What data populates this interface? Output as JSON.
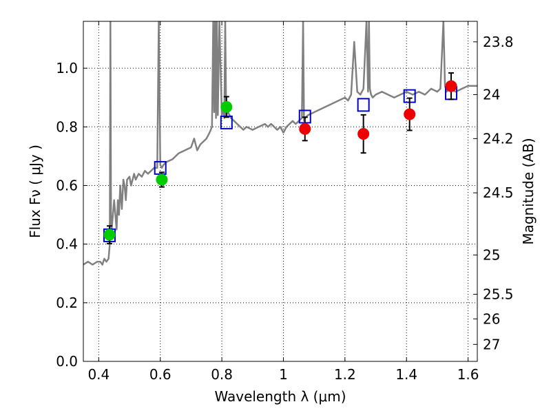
{
  "chart_data": {
    "type": "line",
    "xlabel": "Wavelength  λ (μm)",
    "ylabel": "Flux  Fν  ( μJy )",
    "y2label": "Magnitude (AB)",
    "xlim": [
      0.35,
      1.63
    ],
    "ylim": [
      0.0,
      1.16
    ],
    "grid": true,
    "xticks": [
      0.4,
      0.6,
      0.8,
      1.0,
      1.2,
      1.4,
      1.6
    ],
    "xtick_labels": [
      "0.4",
      "0.6",
      "0.8",
      "1",
      "1.2",
      "1.4",
      "1.6"
    ],
    "yticks": [
      0.0,
      0.2,
      0.4,
      0.6,
      0.8,
      1.0
    ],
    "ytick_labels": [
      "0.0",
      "0.2",
      "0.4",
      "0.6",
      "0.8",
      "1.0"
    ],
    "y2_ticks": [
      {
        "label": "23.8",
        "flux": 1.09
      },
      {
        "label": "24",
        "flux": 0.91
      },
      {
        "label": "24.2",
        "flux": 0.76
      },
      {
        "label": "24.5",
        "flux": 0.575
      },
      {
        "label": "25",
        "flux": 0.363
      },
      {
        "label": "25.5",
        "flux": 0.229
      },
      {
        "label": "26",
        "flux": 0.145
      },
      {
        "label": "27",
        "flux": 0.058
      }
    ],
    "series": [
      {
        "style": "model-spectrum",
        "color": "#808080",
        "x": [
          0.35,
          0.365,
          0.38,
          0.395,
          0.405,
          0.412,
          0.418,
          0.425,
          0.432,
          0.436,
          0.438,
          0.44,
          0.442,
          0.446,
          0.45,
          0.458,
          0.462,
          0.466,
          0.47,
          0.475,
          0.48,
          0.484,
          0.488,
          0.492,
          0.5,
          0.505,
          0.51,
          0.515,
          0.52,
          0.53,
          0.54,
          0.55,
          0.56,
          0.57,
          0.58,
          0.59,
          0.595,
          0.6,
          0.605,
          0.61,
          0.62,
          0.64,
          0.66,
          0.68,
          0.7,
          0.71,
          0.72,
          0.73,
          0.74,
          0.75,
          0.76,
          0.768,
          0.772,
          0.775,
          0.778,
          0.781,
          0.784,
          0.787,
          0.792,
          0.8,
          0.805,
          0.808,
          0.811,
          0.814,
          0.82,
          0.83,
          0.84,
          0.85,
          0.86,
          0.87,
          0.88,
          0.9,
          0.92,
          0.94,
          0.95,
          0.96,
          0.97,
          0.98,
          0.99,
          1.0,
          1.01,
          1.02,
          1.03,
          1.04,
          1.05,
          1.06,
          1.064,
          1.067,
          1.07,
          1.08,
          1.1,
          1.12,
          1.14,
          1.16,
          1.18,
          1.2,
          1.21,
          1.22,
          1.23,
          1.24,
          1.25,
          1.26,
          1.27,
          1.275,
          1.278,
          1.281,
          1.285,
          1.29,
          1.3,
          1.32,
          1.34,
          1.36,
          1.38,
          1.4,
          1.42,
          1.44,
          1.46,
          1.48,
          1.5,
          1.51,
          1.52,
          1.525,
          1.53,
          1.54,
          1.56,
          1.58,
          1.6,
          1.62,
          1.63
        ],
        "y": [
          0.33,
          0.34,
          0.33,
          0.34,
          0.34,
          0.33,
          0.35,
          0.34,
          0.35,
          0.4,
          1.16,
          0.5,
          0.45,
          0.5,
          0.55,
          0.45,
          0.55,
          0.5,
          0.6,
          0.52,
          0.62,
          0.6,
          0.55,
          0.62,
          0.63,
          0.6,
          0.62,
          0.64,
          0.62,
          0.64,
          0.63,
          0.65,
          0.64,
          0.65,
          0.66,
          0.66,
          1.16,
          0.67,
          0.66,
          0.67,
          0.68,
          0.69,
          0.71,
          0.72,
          0.73,
          0.76,
          0.72,
          0.74,
          0.75,
          0.76,
          0.78,
          0.8,
          1.16,
          0.85,
          1.16,
          0.83,
          1.16,
          0.84,
          1.16,
          0.84,
          0.86,
          0.83,
          1.16,
          0.84,
          0.85,
          0.83,
          0.82,
          0.81,
          0.8,
          0.79,
          0.8,
          0.79,
          0.8,
          0.81,
          0.8,
          0.81,
          0.8,
          0.79,
          0.8,
          0.78,
          0.8,
          0.81,
          0.82,
          0.81,
          0.82,
          0.83,
          1.16,
          0.82,
          0.83,
          0.84,
          0.85,
          0.86,
          0.87,
          0.88,
          0.89,
          0.9,
          0.89,
          0.91,
          1.09,
          0.92,
          0.91,
          0.93,
          1.16,
          0.92,
          1.16,
          0.93,
          0.91,
          0.9,
          0.91,
          0.92,
          0.91,
          0.9,
          0.91,
          0.92,
          0.91,
          0.92,
          0.91,
          0.93,
          0.92,
          0.93,
          1.16,
          0.94,
          0.92,
          0.93,
          0.92,
          0.93,
          0.94,
          0.94,
          0.94
        ]
      },
      {
        "style": "model-photometry",
        "marker": "open-square",
        "color": "#0000cc",
        "x": [
          0.435,
          0.6,
          0.815,
          1.07,
          1.26,
          1.41,
          1.545
        ],
        "y": [
          0.43,
          0.66,
          0.815,
          0.835,
          0.875,
          0.905,
          0.915
        ]
      },
      {
        "style": "observed-photometry",
        "marker": "filled-circle",
        "color": "#00cc00",
        "x": [
          0.435,
          0.605,
          0.815
        ],
        "y": [
          0.432,
          0.62,
          0.868
        ],
        "yerr": [
          0.03,
          0.025,
          0.035
        ]
      },
      {
        "style": "observed-photometry",
        "marker": "filled-circle",
        "color": "#ee0000",
        "x": [
          1.07,
          1.26,
          1.41,
          1.545
        ],
        "y": [
          0.793,
          0.776,
          0.843,
          0.939
        ],
        "yerr": [
          0.04,
          0.065,
          0.055,
          0.045
        ]
      }
    ]
  }
}
